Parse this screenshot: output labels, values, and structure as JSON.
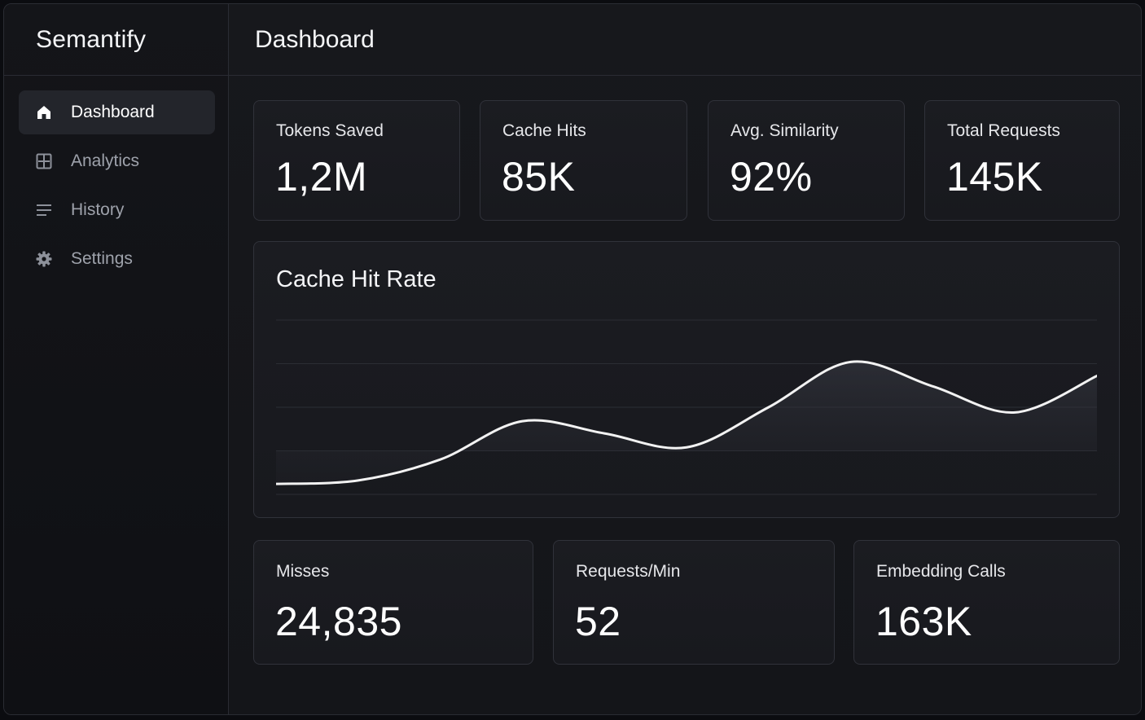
{
  "app": {
    "name": "Semantify"
  },
  "header": {
    "title": "Dashboard"
  },
  "sidebar": {
    "items": [
      {
        "label": "Dashboard",
        "icon": "home-icon",
        "active": true
      },
      {
        "label": "Analytics",
        "icon": "grid-icon",
        "active": false
      },
      {
        "label": "History",
        "icon": "list-icon",
        "active": false
      },
      {
        "label": "Settings",
        "icon": "gear-icon",
        "active": false
      }
    ]
  },
  "stats_top": [
    {
      "label": "Tokens Saved",
      "value": "1,2M"
    },
    {
      "label": "Cache Hits",
      "value": "85K"
    },
    {
      "label": "Avg. Similarity",
      "value": "92%"
    },
    {
      "label": "Total Requests",
      "value": "145K"
    }
  ],
  "stats_bottom": [
    {
      "label": "Misses",
      "value": "24,835"
    },
    {
      "label": "Requests/Min",
      "value": "52"
    },
    {
      "label": "Embedding Calls",
      "value": "163K"
    }
  ],
  "chart_data": {
    "type": "line",
    "title": "Cache Hit Rate",
    "xlabel": "",
    "ylabel": "",
    "ylim": [
      0,
      100
    ],
    "grid": true,
    "x": [
      0,
      1,
      2,
      3,
      4,
      5,
      6,
      7,
      8,
      9,
      10
    ],
    "values": [
      6,
      8,
      20,
      42,
      35,
      27,
      50,
      76,
      62,
      47,
      68
    ]
  },
  "colors": {
    "background": "#17181c",
    "card": "#1b1c21",
    "border": "#30323a",
    "line": "#f2f2f2",
    "text_muted": "#9ea2ab"
  }
}
